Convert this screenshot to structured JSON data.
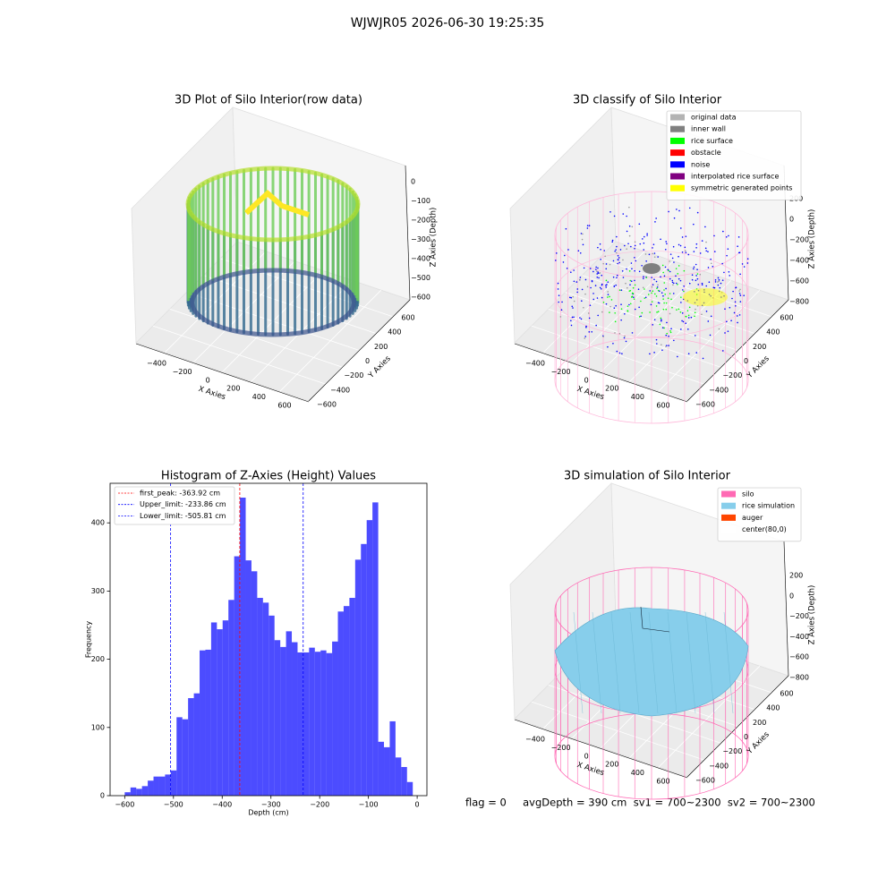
{
  "title": "WJWJR05 2026-06-30 19:25:35",
  "footer": "flag = 0     avgDepth = 390 cm  sv1 = 700~2300  sv2 = 700~2300",
  "chart_data": [
    {
      "type": "scatter3d",
      "title": "3D Plot of Silo Interior(row data)",
      "xlabel": "X Axies",
      "ylabel": "Y Axies",
      "zlabel": "Z Axies (Depth)",
      "xlim": [
        -400,
        600
      ],
      "ylim": [
        -600,
        600
      ],
      "zlim": [
        0,
        -600
      ],
      "xticks": [
        {
          "value": -400,
          "label": "−400"
        },
        {
          "value": -200,
          "label": "−200"
        },
        0,
        200,
        400,
        600
      ],
      "yticks": [
        {
          "value": -600,
          "label": "−600"
        },
        {
          "value": -400,
          "label": "−400"
        },
        {
          "value": -200,
          "label": "−200"
        },
        0,
        200,
        400,
        600
      ],
      "zticks": [
        0,
        {
          "value": -100,
          "label": "−100"
        },
        {
          "value": -200,
          "label": "−200"
        },
        {
          "value": -300,
          "label": "−300"
        },
        {
          "value": -400,
          "label": "−400"
        },
        {
          "value": -500,
          "label": "−500"
        },
        {
          "value": -600,
          "label": "−600"
        }
      ]
    },
    {
      "type": "scatter3d",
      "title": "3D classify of Silo Interior",
      "xlabel": "X Axies",
      "ylabel": "Y Axies",
      "zlabel": "Z Axies (Depth)",
      "xlim": [
        -400,
        600
      ],
      "ylim": [
        -600,
        600
      ],
      "zlim": [
        200,
        -800
      ],
      "xticks": [
        {
          "value": -400,
          "label": "−400"
        },
        {
          "value": -200,
          "label": "−200"
        },
        0,
        200,
        400,
        600
      ],
      "yticks": [
        {
          "value": -600,
          "label": "−600"
        },
        {
          "value": -400,
          "label": "−400"
        },
        {
          "value": -200,
          "label": "−200"
        },
        0,
        200,
        400,
        600
      ],
      "zticks": [
        200,
        0,
        {
          "value": -200,
          "label": "−200"
        },
        {
          "value": -400,
          "label": "−400"
        },
        {
          "value": -600,
          "label": "−600"
        },
        {
          "value": -800,
          "label": "−800"
        }
      ],
      "legend": [
        {
          "name": "original data",
          "color": "#b3b3b3"
        },
        {
          "name": "inner wall",
          "color": "#808080"
        },
        {
          "name": "rice surface",
          "color": "#00ff00"
        },
        {
          "name": "obstacle",
          "color": "#ff0000"
        },
        {
          "name": "noise",
          "color": "#0000ff"
        },
        {
          "name": "interpolated rice surface",
          "color": "#800080"
        },
        {
          "name": "symmetric generated points",
          "color": "#ffff00"
        }
      ]
    },
    {
      "type": "histogram",
      "title": "Histogram of Z-Axies (Height) Values",
      "xlabel": "Depth (cm)",
      "ylabel": "Frequency",
      "color": "#0000ff",
      "bins": [
        -600,
        -588.18,
        -576.36,
        -564.54,
        -552.72,
        -540.9,
        -529.08,
        -517.26,
        -505.44,
        -493.62,
        -481.8,
        -469.98,
        -458.16,
        -446.34,
        -434.52,
        -422.7,
        -410.88,
        -399.06,
        -387.24,
        -375.42,
        -363.6,
        -351.78,
        -339.96,
        -328.14,
        -316.32,
        -304.5,
        -292.68,
        -280.86,
        -269.04,
        -257.22,
        -245.4,
        -233.58,
        -221.76,
        -209.94,
        -198.12,
        -186.3,
        -174.48,
        -162.66,
        -150.84,
        -139.02,
        -127.2,
        -115.38,
        -103.56,
        -91.74,
        -79.92,
        -68.1,
        -56.28,
        -44.46,
        -32.64,
        -20.82,
        -9.0
      ],
      "values": [
        5,
        12,
        10,
        14,
        22,
        28,
        28,
        31,
        37,
        115,
        112,
        143,
        150,
        213,
        214,
        254,
        244,
        257,
        287,
        351,
        437,
        345,
        329,
        290,
        283,
        264,
        228,
        218,
        241,
        225,
        210,
        210,
        217,
        211,
        213,
        209,
        226,
        270,
        278,
        290,
        346,
        369,
        404,
        430,
        79,
        71,
        109,
        56,
        42,
        20
      ],
      "xlim": [
        -630,
        20
      ],
      "ylim": [
        0,
        458
      ],
      "xticks": [
        {
          "value": -600,
          "label": "−600"
        },
        {
          "value": -500,
          "label": "−500"
        },
        {
          "value": -400,
          "label": "−400"
        },
        {
          "value": -300,
          "label": "−300"
        },
        {
          "value": -200,
          "label": "−200"
        },
        {
          "value": -100,
          "label": "−100"
        },
        0
      ],
      "yticks": [
        0,
        100,
        200,
        300,
        400
      ],
      "lines": [
        {
          "name": "first_peak: -363.92 cm",
          "value": -363.92,
          "color": "#ff0000"
        },
        {
          "name": "Upper_limit: -233.86 cm",
          "value": -233.86,
          "color": "#0000ff"
        },
        {
          "name": "Lower_limit: -505.81 cm",
          "value": -505.81,
          "color": "#0000ff"
        }
      ]
    },
    {
      "type": "surface3d",
      "title": "3D simulation of Silo Interior",
      "xlabel": "X Axies",
      "ylabel": "Y Axies",
      "zlabel": "Z Axies (Depth)",
      "xlim": [
        -400,
        600
      ],
      "ylim": [
        -600,
        600
      ],
      "zlim": [
        200,
        -800
      ],
      "xticks": [
        {
          "value": -400,
          "label": "−400"
        },
        {
          "value": -200,
          "label": "−200"
        },
        0,
        200,
        400,
        600
      ],
      "yticks": [
        {
          "value": -600,
          "label": "−600"
        },
        {
          "value": -400,
          "label": "−400"
        },
        {
          "value": -200,
          "label": "−200"
        },
        0,
        200,
        400,
        600
      ],
      "zticks": [
        200,
        0,
        {
          "value": -200,
          "label": "−200"
        },
        {
          "value": -400,
          "label": "−400"
        },
        {
          "value": -600,
          "label": "−600"
        },
        {
          "value": -800,
          "label": "−800"
        }
      ],
      "legend": [
        {
          "name": "silo",
          "color": "#ff69b4"
        },
        {
          "name": "rice simulation",
          "color": "#87ceeb"
        },
        {
          "name": "auger",
          "color": "#ff4500"
        },
        {
          "name": "center(80,0)",
          "color": "#ffffff"
        }
      ]
    }
  ]
}
